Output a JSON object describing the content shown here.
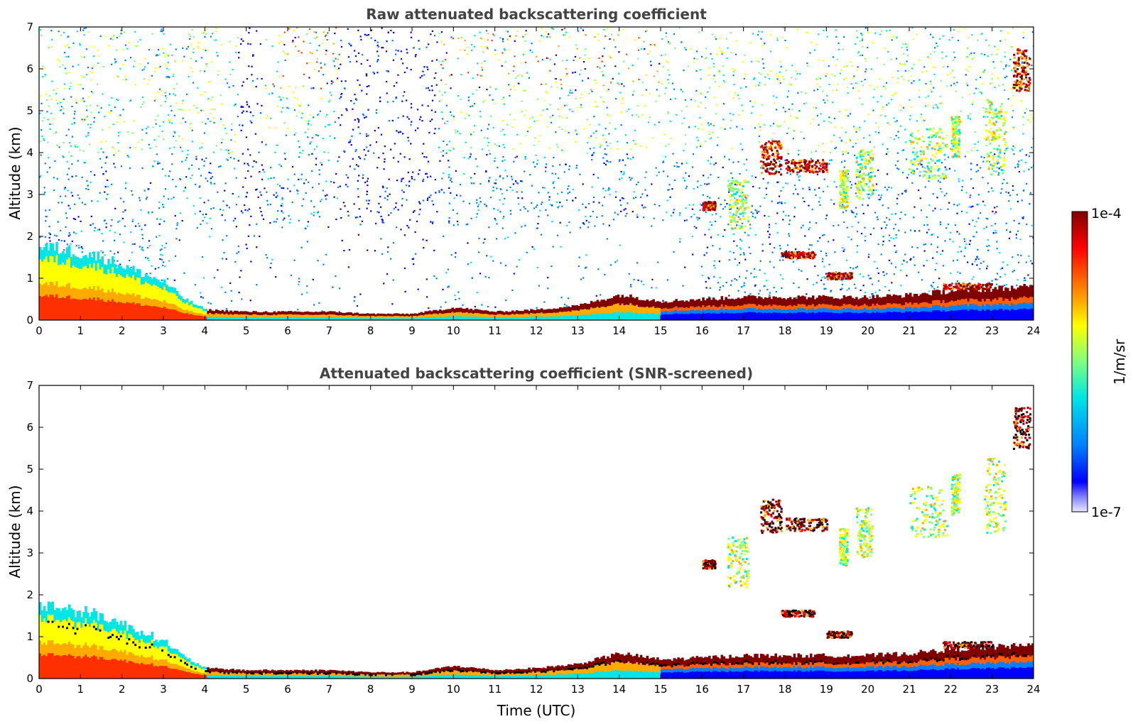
{
  "chart_data": [
    {
      "type": "heatmap",
      "title": "Raw attenuated backscattering coefficient",
      "xlabel": "",
      "ylabel": "Altitude (km)",
      "xlim": [
        0,
        24
      ],
      "ylim": [
        0,
        7
      ],
      "x_ticks": [
        "0",
        "1",
        "2",
        "3",
        "4",
        "5",
        "6",
        "7",
        "8",
        "9",
        "10",
        "11",
        "12",
        "13",
        "14",
        "15",
        "16",
        "17",
        "18",
        "19",
        "20",
        "21",
        "22",
        "23",
        "24"
      ],
      "y_ticks": [
        "0",
        "1",
        "2",
        "3",
        "4",
        "5",
        "6",
        "7"
      ],
      "boundary_layer_top_km": [
        [
          0,
          1.75
        ],
        [
          0.5,
          1.7
        ],
        [
          1,
          1.6
        ],
        [
          1.5,
          1.5
        ],
        [
          2,
          1.3
        ],
        [
          2.5,
          1.1
        ],
        [
          3,
          0.9
        ],
        [
          3.5,
          0.5
        ],
        [
          4,
          0.25
        ],
        [
          5,
          0.2
        ],
        [
          6,
          0.2
        ],
        [
          7,
          0.2
        ],
        [
          8,
          0.15
        ],
        [
          9,
          0.15
        ],
        [
          10,
          0.3
        ],
        [
          11,
          0.2
        ],
        [
          12,
          0.25
        ],
        [
          13,
          0.35
        ],
        [
          14,
          0.6
        ],
        [
          15,
          0.45
        ],
        [
          16,
          0.5
        ],
        [
          17,
          0.55
        ],
        [
          18,
          0.55
        ],
        [
          19,
          0.55
        ],
        [
          20,
          0.55
        ],
        [
          21,
          0.6
        ],
        [
          22,
          0.7
        ],
        [
          23,
          0.75
        ],
        [
          24,
          0.8
        ]
      ],
      "cloud_layers": [
        {
          "x": [
            16.0,
            16.3
          ],
          "y": [
            2.65,
            2.85
          ],
          "level": "high"
        },
        {
          "x": [
            16.6,
            17.1
          ],
          "y": [
            2.2,
            3.4
          ],
          "level": "medium"
        },
        {
          "x": [
            17.4,
            17.9
          ],
          "y": [
            3.5,
            4.3
          ],
          "level": "high"
        },
        {
          "x": [
            18.0,
            19.0
          ],
          "y": [
            3.55,
            3.85
          ],
          "level": "high"
        },
        {
          "x": [
            19.3,
            19.5
          ],
          "y": [
            2.7,
            3.6
          ],
          "level": "medium"
        },
        {
          "x": [
            19.7,
            20.1
          ],
          "y": [
            2.9,
            4.1
          ],
          "level": "medium"
        },
        {
          "x": [
            21.0,
            21.9
          ],
          "y": [
            3.4,
            4.6
          ],
          "level": "medium"
        },
        {
          "x": [
            22.0,
            22.2
          ],
          "y": [
            3.9,
            4.9
          ],
          "level": "medium"
        },
        {
          "x": [
            22.8,
            23.3
          ],
          "y": [
            3.5,
            5.3
          ],
          "level": "medium"
        },
        {
          "x": [
            23.5,
            23.9
          ],
          "y": [
            5.5,
            6.5
          ],
          "level": "high"
        },
        {
          "x": [
            17.9,
            18.7
          ],
          "y": [
            1.5,
            1.65
          ],
          "level": "high"
        },
        {
          "x": [
            19.0,
            19.6
          ],
          "y": [
            1.0,
            1.15
          ],
          "level": "high"
        },
        {
          "x": [
            21.8,
            23.0
          ],
          "y": [
            0.75,
            0.9
          ],
          "level": "high"
        }
      ]
    },
    {
      "type": "heatmap",
      "title": "Attenuated backscattering coefficient (SNR-screened)",
      "xlabel": "Time (UTC)",
      "ylabel": "Altitude (km)",
      "xlim": [
        0,
        24
      ],
      "ylim": [
        0,
        7
      ],
      "x_ticks": [
        "0",
        "1",
        "2",
        "3",
        "4",
        "5",
        "6",
        "7",
        "8",
        "9",
        "10",
        "11",
        "12",
        "13",
        "14",
        "15",
        "16",
        "17",
        "18",
        "19",
        "20",
        "21",
        "22",
        "23",
        "24"
      ],
      "y_ticks": [
        "0",
        "1",
        "2",
        "3",
        "4",
        "5",
        "6",
        "7"
      ]
    }
  ],
  "colorbar": {
    "label": "1/m/sr",
    "max_label": "1e-4",
    "min_label": "1e-7",
    "colors": [
      "#7f0000",
      "#ff0000",
      "#ffaa00",
      "#ffff00",
      "#7fff7f",
      "#00e5e5",
      "#007fff",
      "#0000ff",
      "#e0e0ff"
    ]
  }
}
